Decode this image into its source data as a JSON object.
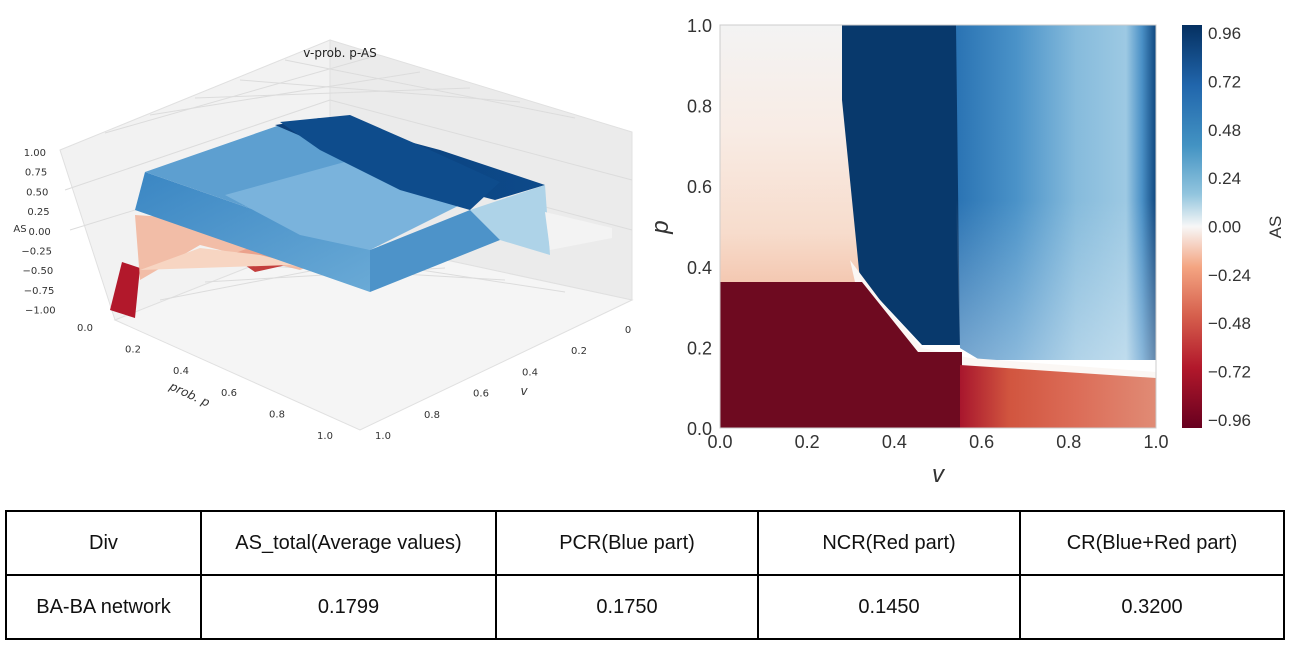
{
  "chart_data": [
    {
      "type": "surface3d",
      "title": "v-prob. p-AS",
      "xlabel": "v",
      "ylabel": "prob. p",
      "zlabel": "AS",
      "x_ticks": [
        "0",
        "0.2",
        "0.4",
        "0.6",
        "0.8",
        "1.0"
      ],
      "y_ticks": [
        "0.0",
        "0.2",
        "0.4",
        "0.6",
        "0.8",
        "1.0"
      ],
      "z_ticks": [
        "1.00",
        "0.75",
        "0.50",
        "0.25",
        "0.00",
        "−0.25",
        "−0.50",
        "−0.75",
        "−1.00"
      ],
      "xlim": [
        0,
        1
      ],
      "ylim": [
        0,
        1
      ],
      "zlim": [
        -1,
        1
      ],
      "colormap": "RdBu"
    },
    {
      "type": "heatmap",
      "xlabel": "v",
      "ylabel": "p",
      "colorbar_label": "AS",
      "x_ticks": [
        "0.0",
        "0.2",
        "0.4",
        "0.6",
        "0.8",
        "1.0"
      ],
      "y_ticks": [
        "0.0",
        "0.2",
        "0.4",
        "0.6",
        "0.8",
        "1.0"
      ],
      "colorbar_ticks": [
        "0.96",
        "0.72",
        "0.48",
        "0.24",
        "0.00",
        "−0.24",
        "−0.48",
        "−0.72",
        "−0.96"
      ],
      "xlim": [
        0,
        1
      ],
      "ylim": [
        0,
        1
      ],
      "clim": [
        -1,
        1
      ],
      "colormap": "RdBu",
      "regions": [
        {
          "v_range": [
            0,
            0.3
          ],
          "p_range": [
            0.34,
            1.0
          ],
          "AS": 0.0
        },
        {
          "v_range": [
            0.3,
            0.55
          ],
          "p_range": [
            0.2,
            1.0
          ],
          "AS": 0.96
        },
        {
          "v_range": [
            0.55,
            1.0
          ],
          "p_range": [
            0.15,
            1.0
          ],
          "AS": 0.5
        },
        {
          "v_range": [
            0,
            0.55
          ],
          "p_range": [
            0,
            0.34
          ],
          "AS": -0.96
        },
        {
          "v_range": [
            0.55,
            1.0
          ],
          "p_range": [
            0,
            0.13
          ],
          "AS": -0.5
        }
      ]
    }
  ],
  "table": {
    "headers": [
      "Div",
      "AS_total(Average values)",
      "PCR(Blue part)",
      "NCR(Red part)",
      "CR(Blue+Red part)"
    ],
    "rows": [
      [
        "BA-BA network",
        "0.1799",
        "0.1750",
        "0.1450",
        "0.3200"
      ]
    ]
  },
  "colors": {
    "dark_blue": "#08396c",
    "mid_blue": "#4a8fc5",
    "light_blue": "#a9cfe5",
    "near_white": "#f6f0ed",
    "light_red": "#f3c1a5",
    "mid_red": "#d76852",
    "dark_red": "#6e0a20"
  }
}
